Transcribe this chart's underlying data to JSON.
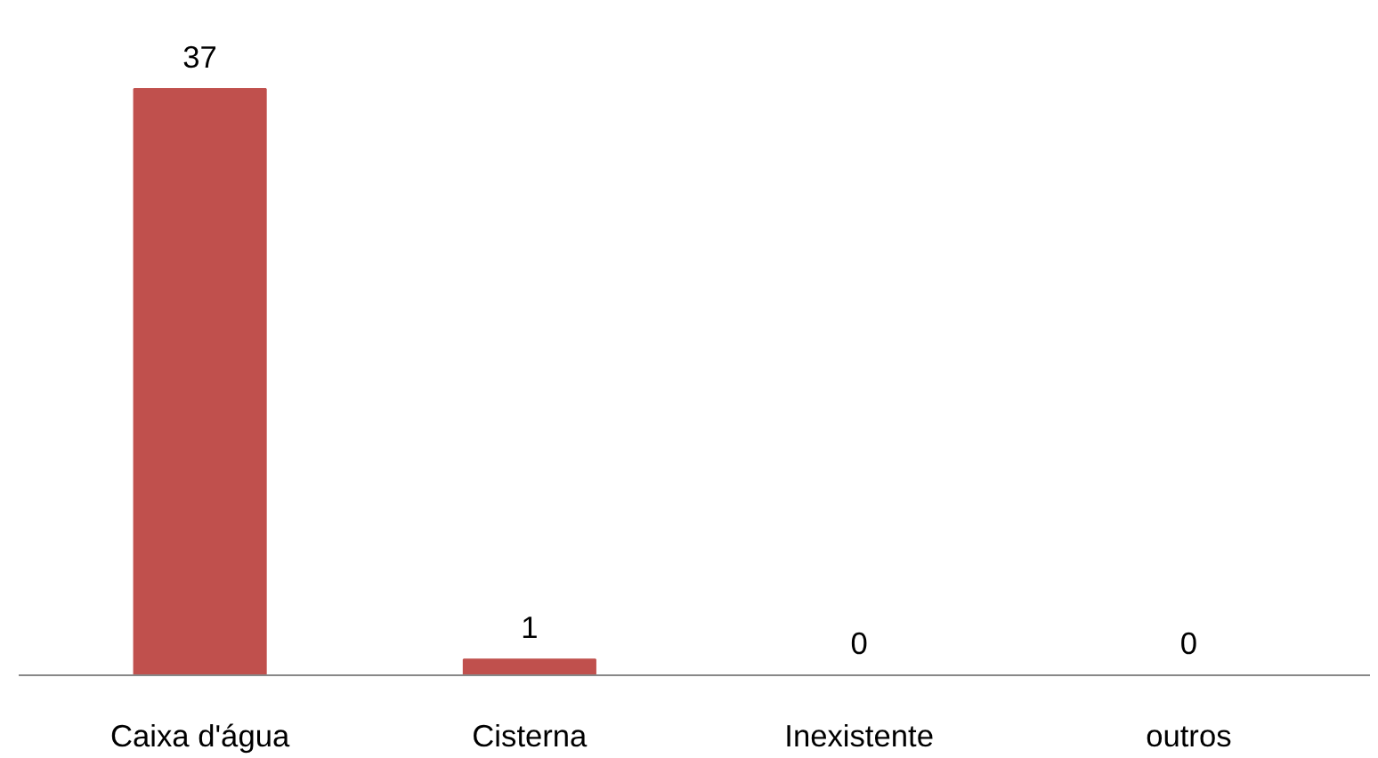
{
  "chart_data": {
    "type": "bar",
    "categories": [
      "Caixa d'água",
      "Cisterna",
      "Inexistente",
      "outros"
    ],
    "values": [
      37,
      1,
      0,
      0
    ],
    "color": "#c0504d",
    "data_labels": true
  }
}
